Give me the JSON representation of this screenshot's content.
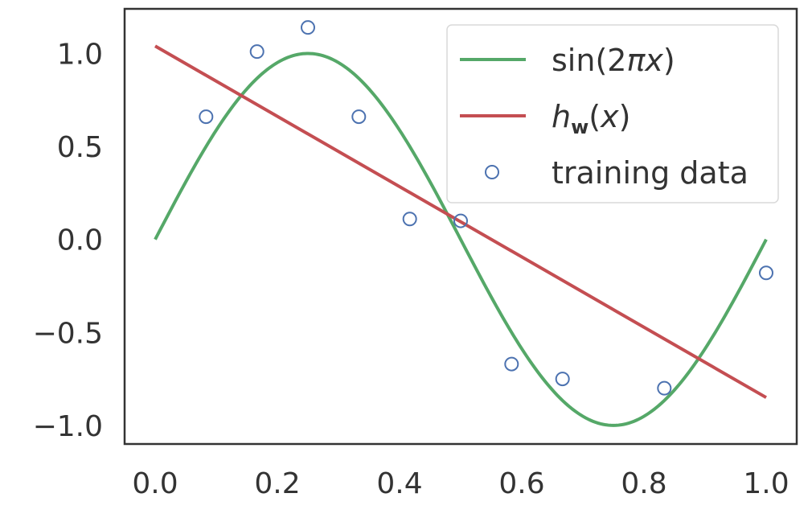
{
  "chart_data": {
    "type": "line",
    "title": "",
    "xlabel": "",
    "ylabel": "",
    "xlim": [
      -0.05,
      1.05
    ],
    "ylim": [
      -1.1,
      1.24
    ],
    "grid": false,
    "legend_position": "top-right",
    "x_ticks": [
      0.0,
      0.2,
      0.4,
      0.6,
      0.8,
      1.0
    ],
    "x_tick_labels": [
      "0.0",
      "0.2",
      "0.4",
      "0.6",
      "0.8",
      "1.0"
    ],
    "y_ticks": [
      1.0,
      0.5,
      0.0,
      -0.5,
      -1.0
    ],
    "y_tick_labels": [
      "1.0",
      "0.5",
      "0.0",
      "−0.5",
      "−1.0"
    ],
    "series": [
      {
        "name": "sin(2πx)",
        "legend_base": "sin(2",
        "legend_italic": "πx",
        "legend_tail": ")",
        "kind": "function",
        "function": "sin(2*pi*x)",
        "x_range": [
          0,
          1
        ],
        "color": "#55a868"
      },
      {
        "name": "h_w(x)",
        "legend_h": "h",
        "legend_sub": "w",
        "legend_open": "(",
        "legend_x": "x",
        "legend_close": ")",
        "kind": "line",
        "x": [
          0,
          1
        ],
        "y": [
          1.04,
          -0.85
        ],
        "color": "#c44e52"
      },
      {
        "name": "training data",
        "kind": "scatter",
        "marker": "hollow-circle",
        "x": [
          0.0833,
          0.1667,
          0.25,
          0.3333,
          0.4167,
          0.5,
          0.5833,
          0.6667,
          0.8333,
          1.0
        ],
        "y": [
          0.66,
          1.01,
          1.14,
          0.66,
          0.11,
          0.1,
          -0.67,
          -0.75,
          -0.8,
          -0.18
        ],
        "color": "#4c72b0"
      }
    ]
  }
}
